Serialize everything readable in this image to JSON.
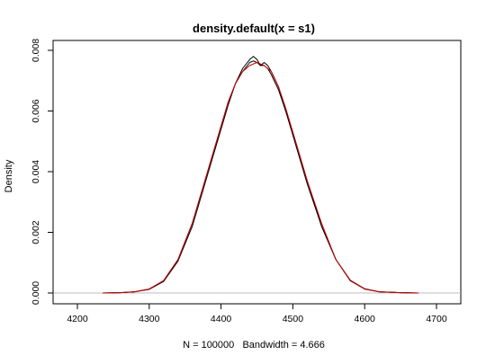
{
  "chart_data": {
    "type": "line",
    "title": "density.default(x = s1)",
    "xlabel": "N = 100000   Bandwidth = 4.666",
    "ylabel": "Density",
    "xlim": [
      4200,
      4700
    ],
    "ylim": [
      0,
      0.008
    ],
    "x_ticks": [
      {
        "value": 4200,
        "label": "4200"
      },
      {
        "value": 4300,
        "label": "4300"
      },
      {
        "value": 4400,
        "label": "4400"
      },
      {
        "value": 4500,
        "label": "4500"
      },
      {
        "value": 4600,
        "label": "4600"
      },
      {
        "value": 4700,
        "label": "4700"
      }
    ],
    "y_ticks": [
      {
        "value": 0,
        "label": "0.000"
      },
      {
        "value": 0.002,
        "label": "0.002"
      },
      {
        "value": 0.004,
        "label": "0.004"
      },
      {
        "value": 0.006,
        "label": "0.006"
      },
      {
        "value": 0.008,
        "label": "0.008"
      }
    ],
    "zero_line_color": "#bebebe",
    "series": [
      {
        "color": "#000000",
        "x": [
          4235,
          4260,
          4280,
          4300,
          4320,
          4340,
          4360,
          4380,
          4400,
          4410,
          4420,
          4430,
          4440,
          4445,
          4450,
          4455,
          4460,
          4465,
          4470,
          4480,
          4490,
          4500,
          4520,
          4540,
          4560,
          4580,
          4600,
          4620,
          4650,
          4675
        ],
        "y": [
          0.0,
          1e-05,
          4e-05,
          0.00013,
          0.0004,
          0.0011,
          0.0023,
          0.0039,
          0.0055,
          0.0063,
          0.0069,
          0.0074,
          0.0077,
          0.0078,
          0.0077,
          0.0075,
          0.0076,
          0.0075,
          0.0073,
          0.0068,
          0.006,
          0.0053,
          0.0037,
          0.0022,
          0.0011,
          0.0004,
          0.00013,
          4e-05,
          1e-05,
          0.0
        ]
      },
      {
        "color": "#000000",
        "x": [
          4235,
          4260,
          4280,
          4300,
          4320,
          4340,
          4360,
          4380,
          4400,
          4410,
          4420,
          4430,
          4440,
          4445,
          4450,
          4455,
          4460,
          4465,
          4470,
          4480,
          4490,
          4500,
          4520,
          4540,
          4560,
          4580,
          4600,
          4620,
          4650,
          4675
        ],
        "y": [
          0.0,
          1e-05,
          4e-05,
          0.00012,
          0.00038,
          0.00105,
          0.0022,
          0.0038,
          0.0054,
          0.0062,
          0.0069,
          0.0073,
          0.0076,
          0.00765,
          0.0076,
          0.0075,
          0.0075,
          0.0074,
          0.0072,
          0.0067,
          0.006,
          0.0052,
          0.0036,
          0.0022,
          0.0011,
          0.00042,
          0.00014,
          4e-05,
          1e-05,
          0.0
        ]
      },
      {
        "color": "#cc0000",
        "x": [
          4235,
          4260,
          4280,
          4300,
          4320,
          4340,
          4360,
          4380,
          4400,
          4410,
          4420,
          4430,
          4440,
          4450,
          4460,
          4470,
          4480,
          4490,
          4500,
          4520,
          4540,
          4560,
          4580,
          4600,
          4620,
          4650,
          4675
        ],
        "y": [
          0.0,
          1e-05,
          4e-05,
          0.00013,
          0.00041,
          0.0011,
          0.0023,
          0.0039,
          0.0055,
          0.0063,
          0.0069,
          0.0073,
          0.0075,
          0.0076,
          0.0075,
          0.0073,
          0.0068,
          0.0061,
          0.0053,
          0.0037,
          0.0023,
          0.0011,
          0.00041,
          0.00013,
          4e-05,
          1e-05,
          0.0
        ]
      }
    ]
  }
}
